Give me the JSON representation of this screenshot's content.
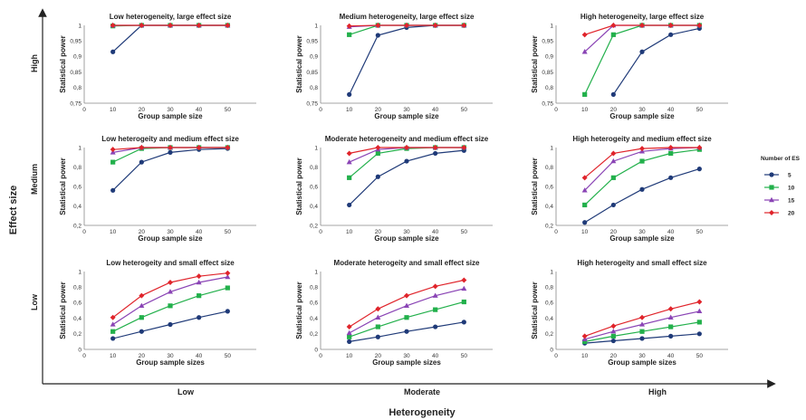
{
  "figure": {
    "y_axis_title": "Effect size",
    "x_axis_title": "Heterogeneity",
    "row_labels": [
      "High",
      "Medium",
      "Low"
    ],
    "col_labels": [
      "Low",
      "Moderate",
      "High"
    ],
    "legend_title": "Number of ES",
    "series_names": [
      "5",
      "10",
      "15",
      "20"
    ]
  },
  "colors": {
    "5": "#1f3a78",
    "10": "#22b04b",
    "15": "#8a44b5",
    "20": "#e0242b",
    "axis": "#222222",
    "background": "#ffffff"
  },
  "chart_data": [
    {
      "type": "line",
      "title": "Low heterogeneity, large effect size",
      "xlabel": "Group sample size",
      "ylabel": "Statistical power",
      "x": [
        10,
        20,
        30,
        40,
        50
      ],
      "xlim": [
        0,
        60
      ],
      "xticks": [
        0,
        10,
        20,
        30,
        40,
        50
      ],
      "ylim": [
        0.75,
        1
      ],
      "yticks": [
        0.75,
        0.8,
        0.85,
        0.9,
        0.95,
        1
      ],
      "series": [
        {
          "name": "5",
          "values": [
            0.915,
            1,
            1,
            1,
            1
          ]
        },
        {
          "name": "10",
          "values": [
            0.998,
            1,
            1,
            1,
            1
          ]
        },
        {
          "name": "15",
          "values": [
            1,
            1,
            1,
            1,
            1
          ]
        },
        {
          "name": "20",
          "values": [
            1,
            1,
            1,
            1,
            1
          ]
        }
      ]
    },
    {
      "type": "line",
      "title": "Medium heterogeneity, large effect size",
      "xlabel": "Group sample size",
      "ylabel": "Statistical power",
      "x": [
        10,
        20,
        30,
        40,
        50
      ],
      "xlim": [
        0,
        60
      ],
      "xticks": [
        0,
        10,
        20,
        30,
        40,
        50
      ],
      "ylim": [
        0.75,
        1
      ],
      "yticks": [
        0.75,
        0.8,
        0.85,
        0.9,
        0.95,
        1
      ],
      "series": [
        {
          "name": "5",
          "values": [
            0.778,
            0.968,
            0.993,
            1,
            1
          ]
        },
        {
          "name": "10",
          "values": [
            0.97,
            1,
            1,
            1,
            1
          ]
        },
        {
          "name": "15",
          "values": [
            0.995,
            1,
            1,
            1,
            1
          ]
        },
        {
          "name": "20",
          "values": [
            0.998,
            1,
            1,
            1,
            1
          ]
        }
      ]
    },
    {
      "type": "line",
      "title": "High heterogeneity, large effect size",
      "xlabel": "Group sample size",
      "ylabel": "Statistical power",
      "x": [
        10,
        20,
        30,
        40,
        50
      ],
      "xlim": [
        0,
        60
      ],
      "xticks": [
        0,
        10,
        20,
        30,
        40,
        50
      ],
      "ylim": [
        0.75,
        1
      ],
      "yticks": [
        0.75,
        0.8,
        0.85,
        0.9,
        0.95,
        1
      ],
      "series": [
        {
          "name": "5",
          "x": [
            20,
            30,
            40,
            50
          ],
          "values": [
            0.778,
            0.915,
            0.97,
            0.99
          ]
        },
        {
          "name": "10",
          "values": [
            0.778,
            0.97,
            1,
            1,
            1
          ]
        },
        {
          "name": "15",
          "values": [
            0.915,
            1,
            1,
            1,
            1
          ]
        },
        {
          "name": "20",
          "values": [
            0.97,
            1,
            1,
            1,
            1
          ]
        }
      ]
    },
    {
      "type": "line",
      "title": "Low heterogeity and medium effect size",
      "xlabel": "Group sample size",
      "ylabel": "Statistical power",
      "x": [
        10,
        20,
        30,
        40,
        50
      ],
      "xlim": [
        0,
        60
      ],
      "xticks": [
        0,
        10,
        20,
        30,
        40,
        50
      ],
      "ylim": [
        0.2,
        1
      ],
      "yticks": [
        0.2,
        0.4,
        0.6,
        0.8,
        1
      ],
      "series": [
        {
          "name": "5",
          "values": [
            0.56,
            0.85,
            0.95,
            0.98,
            0.99
          ]
        },
        {
          "name": "10",
          "values": [
            0.85,
            0.99,
            1,
            1,
            1
          ]
        },
        {
          "name": "15",
          "values": [
            0.95,
            1,
            1,
            1,
            1
          ]
        },
        {
          "name": "20",
          "values": [
            0.98,
            1,
            1,
            1,
            1
          ]
        }
      ]
    },
    {
      "type": "line",
      "title": "Moderate heterogeneity and medium effect size",
      "xlabel": "Group sample size",
      "ylabel": "Statistical power",
      "x": [
        10,
        20,
        30,
        40,
        50
      ],
      "xlim": [
        0,
        60
      ],
      "xticks": [
        0,
        10,
        20,
        30,
        40,
        50
      ],
      "ylim": [
        0.2,
        1
      ],
      "yticks": [
        0.2,
        0.4,
        0.6,
        0.8,
        1
      ],
      "series": [
        {
          "name": "5",
          "values": [
            0.41,
            0.7,
            0.86,
            0.94,
            0.97
          ]
        },
        {
          "name": "10",
          "values": [
            0.69,
            0.94,
            0.99,
            1,
            1
          ]
        },
        {
          "name": "15",
          "values": [
            0.85,
            0.98,
            1,
            1,
            1
          ]
        },
        {
          "name": "20",
          "values": [
            0.94,
            1,
            1,
            1,
            1
          ]
        }
      ]
    },
    {
      "type": "line",
      "title": "High heterogeity and medium effect size",
      "xlabel": "Group sample size",
      "ylabel": "Statistical power",
      "x": [
        10,
        20,
        30,
        40,
        50
      ],
      "xlim": [
        0,
        60
      ],
      "xticks": [
        0,
        10,
        20,
        30,
        40,
        50
      ],
      "ylim": [
        0.2,
        1
      ],
      "yticks": [
        0.2,
        0.4,
        0.6,
        0.8,
        1
      ],
      "series": [
        {
          "name": "5",
          "values": [
            0.23,
            0.41,
            0.57,
            0.69,
            0.78
          ]
        },
        {
          "name": "10",
          "values": [
            0.41,
            0.69,
            0.86,
            0.94,
            0.98
          ]
        },
        {
          "name": "15",
          "values": [
            0.56,
            0.86,
            0.96,
            0.99,
            1
          ]
        },
        {
          "name": "20",
          "values": [
            0.69,
            0.94,
            0.99,
            1,
            1
          ]
        }
      ]
    },
    {
      "type": "line",
      "title": "Low heterogeity and small effect size",
      "xlabel": "Group sample sizes",
      "ylabel": "Statistical power",
      "x": [
        10,
        20,
        30,
        40,
        50
      ],
      "xlim": [
        0,
        60
      ],
      "xticks": [
        0,
        10,
        20,
        30,
        40,
        50
      ],
      "ylim": [
        0,
        1
      ],
      "yticks": [
        0,
        0.2,
        0.4,
        0.6,
        0.8,
        1
      ],
      "series": [
        {
          "name": "5",
          "values": [
            0.14,
            0.23,
            0.32,
            0.41,
            0.49
          ]
        },
        {
          "name": "10",
          "values": [
            0.23,
            0.41,
            0.56,
            0.69,
            0.79
          ]
        },
        {
          "name": "15",
          "values": [
            0.32,
            0.56,
            0.74,
            0.86,
            0.93
          ]
        },
        {
          "name": "20",
          "values": [
            0.41,
            0.69,
            0.86,
            0.94,
            0.98
          ]
        }
      ]
    },
    {
      "type": "line",
      "title": "Moderate heterogeity and small effect size",
      "xlabel": "Group sample sizes",
      "ylabel": "Statistical power",
      "x": [
        10,
        20,
        30,
        40,
        50
      ],
      "xlim": [
        0,
        60
      ],
      "xticks": [
        0,
        10,
        20,
        30,
        40,
        50
      ],
      "ylim": [
        0,
        1
      ],
      "yticks": [
        0,
        0.2,
        0.4,
        0.6,
        0.8,
        1
      ],
      "series": [
        {
          "name": "5",
          "values": [
            0.1,
            0.16,
            0.23,
            0.29,
            0.35
          ]
        },
        {
          "name": "10",
          "values": [
            0.16,
            0.29,
            0.41,
            0.51,
            0.61
          ]
        },
        {
          "name": "15",
          "values": [
            0.21,
            0.41,
            0.56,
            0.69,
            0.78
          ]
        },
        {
          "name": "20",
          "values": [
            0.29,
            0.52,
            0.69,
            0.81,
            0.89
          ]
        }
      ]
    },
    {
      "type": "line",
      "title": "High heterogeity and small effect size",
      "xlabel": "Group sample sizes",
      "ylabel": "Statistical power",
      "x": [
        10,
        20,
        30,
        40,
        50
      ],
      "xlim": [
        0,
        60
      ],
      "xticks": [
        0,
        10,
        20,
        30,
        40,
        50
      ],
      "ylim": [
        0,
        1
      ],
      "yticks": [
        0,
        0.2,
        0.4,
        0.6,
        0.8,
        1
      ],
      "series": [
        {
          "name": "5",
          "values": [
            0.08,
            0.11,
            0.14,
            0.17,
            0.2
          ]
        },
        {
          "name": "10",
          "values": [
            0.1,
            0.17,
            0.23,
            0.29,
            0.35
          ]
        },
        {
          "name": "15",
          "values": [
            0.13,
            0.23,
            0.32,
            0.41,
            0.49
          ]
        },
        {
          "name": "20",
          "values": [
            0.17,
            0.3,
            0.41,
            0.52,
            0.61
          ]
        }
      ]
    }
  ]
}
